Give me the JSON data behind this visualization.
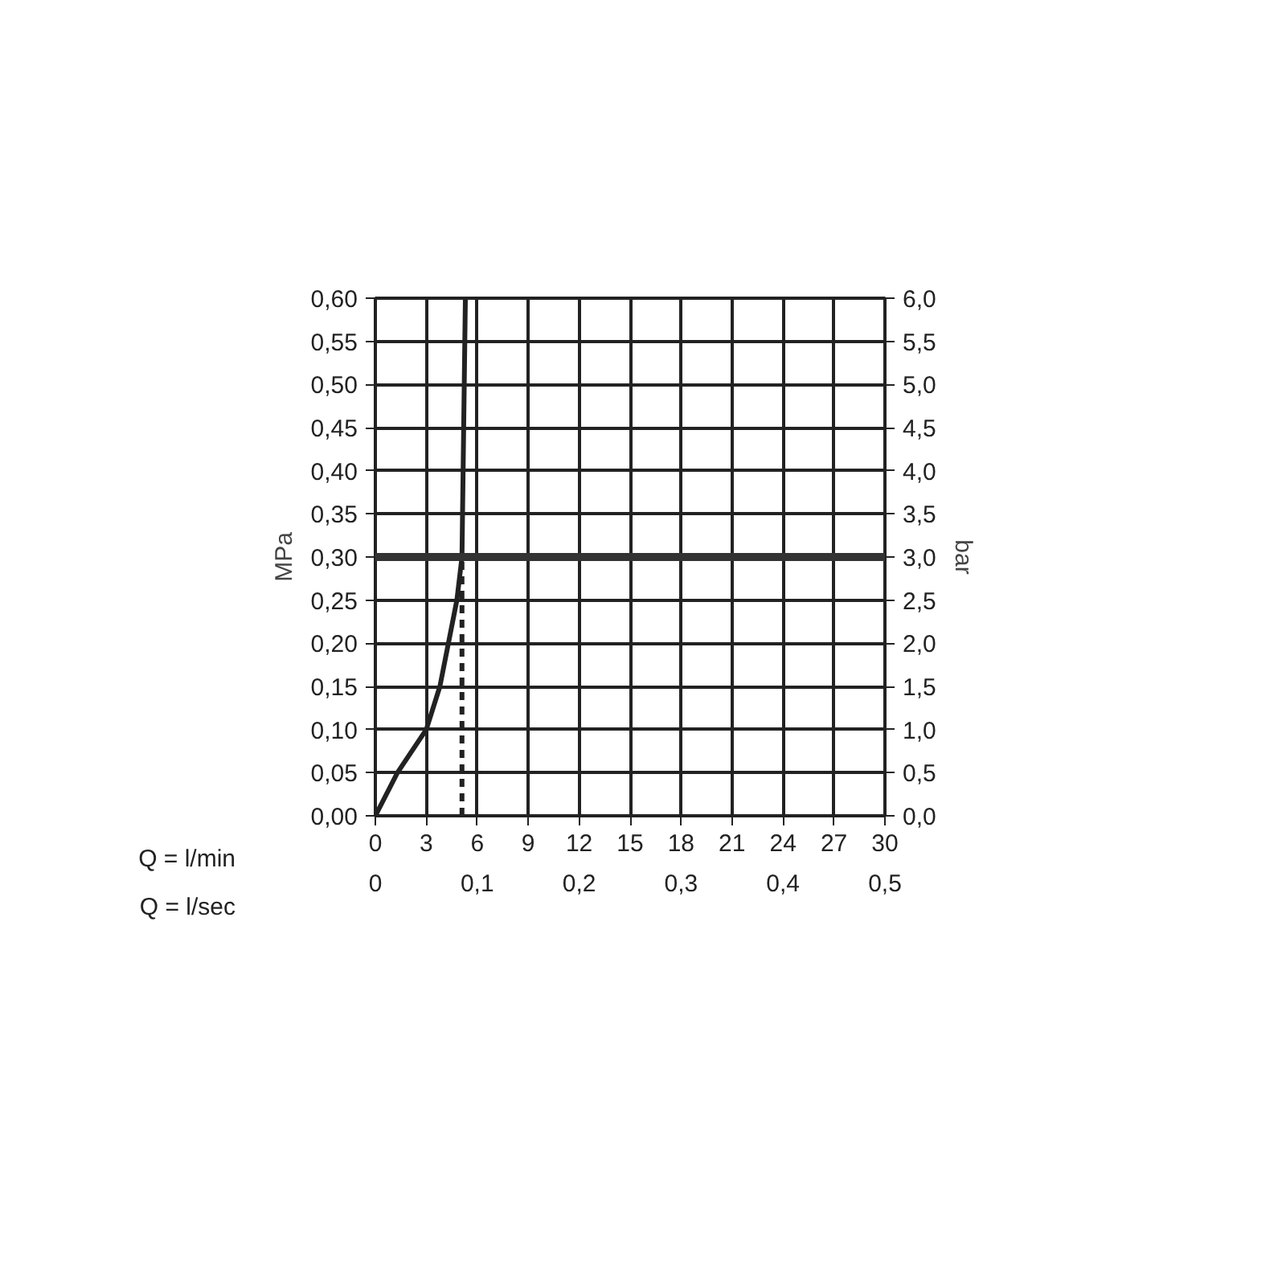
{
  "chart_data": {
    "type": "line",
    "xlabel": "Q = l/min",
    "x2label": "Q = l/sec",
    "ylabel": "MPa",
    "y2label": "bar",
    "xlim": [
      0,
      30
    ],
    "xticks": [
      0,
      3,
      6,
      9,
      12,
      15,
      18,
      21,
      24,
      27,
      30
    ],
    "x2lim": [
      0,
      0.5
    ],
    "x2ticks": [
      0,
      {
        "value": 0.1,
        "label": "0,1"
      },
      {
        "value": 0.2,
        "label": "0,2"
      },
      {
        "value": 0.3,
        "label": "0,3"
      },
      {
        "value": 0.4,
        "label": "0,4"
      },
      {
        "value": 0.5,
        "label": "0,5"
      }
    ],
    "ylim": [
      0,
      0.6
    ],
    "yticks": [
      {
        "value": 0,
        "label": "0,00"
      },
      {
        "value": 0.05,
        "label": "0,05"
      },
      {
        "value": 0.1,
        "label": "0,10"
      },
      {
        "value": 0.15,
        "label": "0,15"
      },
      {
        "value": 0.2,
        "label": "0,20"
      },
      {
        "value": 0.25,
        "label": "0,25"
      },
      {
        "value": 0.3,
        "label": "0,30"
      },
      {
        "value": 0.35,
        "label": "0,35"
      },
      {
        "value": 0.4,
        "label": "0,40"
      },
      {
        "value": 0.45,
        "label": "0,45"
      },
      {
        "value": 0.5,
        "label": "0,50"
      },
      {
        "value": 0.55,
        "label": "0,55"
      },
      {
        "value": 0.6,
        "label": "0,60"
      }
    ],
    "y2lim": [
      0,
      6
    ],
    "y2ticks": [
      {
        "value": 0,
        "label": "0,0"
      },
      {
        "value": 0.5,
        "label": "0,5"
      },
      {
        "value": 1,
        "label": "1,0"
      },
      {
        "value": 1.5,
        "label": "1,5"
      },
      {
        "value": 2,
        "label": "2,0"
      },
      {
        "value": 2.5,
        "label": "2,5"
      },
      {
        "value": 3,
        "label": "3,0"
      },
      {
        "value": 3.5,
        "label": "3,5"
      },
      {
        "value": 4,
        "label": "4,0"
      },
      {
        "value": 4.5,
        "label": "4,5"
      },
      {
        "value": 5,
        "label": "5,0"
      },
      {
        "value": 5.5,
        "label": "5,5"
      },
      {
        "value": 6,
        "label": "6,0"
      }
    ],
    "grid": true,
    "marker": "none",
    "series": [
      {
        "color": "#222222",
        "line_style": "solid",
        "x": [
          0,
          1.3,
          3,
          3.8,
          4.3,
          4.8,
          5.1,
          5.2,
          5.3
        ],
        "values": [
          0,
          0.05,
          0.1,
          0.15,
          0.2,
          0.25,
          0.3,
          0.45,
          0.6
        ]
      },
      {
        "color": "#222222",
        "line_style": "dashed",
        "x": [
          5.1,
          5.1
        ],
        "values": [
          0,
          0.3
        ]
      }
    ],
    "ref_lines": [
      {
        "axis": "y",
        "value": 0.3,
        "color": "#333333"
      }
    ]
  }
}
